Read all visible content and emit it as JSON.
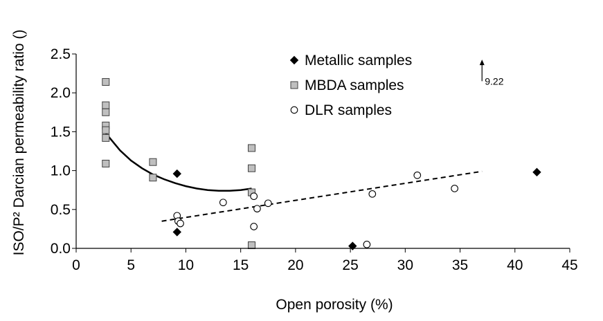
{
  "chart_data": {
    "type": "scatter",
    "title": "",
    "xlabel": "Open porosity (%)",
    "ylabel": "ISO/P² Darcian permeability ratio ()",
    "xlim": [
      0,
      45
    ],
    "ylim": [
      0,
      2.5
    ],
    "x_ticks": [
      "0",
      "5",
      "10",
      "15",
      "20",
      "25",
      "30",
      "35",
      "40",
      "45"
    ],
    "y_ticks": [
      "0.0",
      "0.5",
      "1.0",
      "1.5",
      "2.0",
      "2.5"
    ],
    "grid": false,
    "legend_position": "top-center",
    "series": [
      {
        "name": "Metallic samples",
        "marker": "diamond",
        "fill": "#000000",
        "stroke": "#000000",
        "points": [
          [
            9.2,
            0.96
          ],
          [
            9.2,
            0.21
          ],
          [
            25.2,
            0.03
          ],
          [
            42.0,
            0.98
          ]
        ]
      },
      {
        "name": "MBDA samples",
        "marker": "square",
        "fill": "#bfbfbf",
        "stroke": "#404040",
        "points": [
          [
            2.7,
            2.14
          ],
          [
            2.7,
            1.84
          ],
          [
            2.7,
            1.75
          ],
          [
            2.7,
            1.58
          ],
          [
            2.7,
            1.52
          ],
          [
            2.7,
            1.42
          ],
          [
            2.7,
            1.09
          ],
          [
            7.0,
            1.11
          ],
          [
            7.0,
            0.91
          ],
          [
            16.0,
            1.29
          ],
          [
            16.0,
            1.03
          ],
          [
            16.0,
            0.72
          ],
          [
            16.0,
            0.04
          ]
        ]
      },
      {
        "name": "DLR samples",
        "marker": "circle",
        "fill": "#ffffff",
        "stroke": "#000000",
        "points": [
          [
            9.2,
            0.42
          ],
          [
            9.3,
            0.35
          ],
          [
            9.5,
            0.32
          ],
          [
            13.4,
            0.59
          ],
          [
            16.2,
            0.67
          ],
          [
            16.2,
            0.28
          ],
          [
            16.5,
            0.51
          ],
          [
            17.5,
            0.58
          ],
          [
            26.5,
            0.05
          ],
          [
            27.0,
            0.7
          ],
          [
            31.1,
            0.94
          ],
          [
            34.5,
            0.77
          ]
        ]
      }
    ],
    "trendlines": [
      {
        "style": "solid",
        "points": [
          [
            2.7,
            1.48
          ],
          [
            4.0,
            1.26
          ],
          [
            5.0,
            1.13
          ],
          [
            6.0,
            1.03
          ],
          [
            7.0,
            0.95
          ],
          [
            8.0,
            0.89
          ],
          [
            9.0,
            0.84
          ],
          [
            10.0,
            0.8
          ],
          [
            11.0,
            0.77
          ],
          [
            12.0,
            0.75
          ],
          [
            13.0,
            0.74
          ],
          [
            14.0,
            0.74
          ],
          [
            15.0,
            0.75
          ],
          [
            16.0,
            0.77
          ]
        ]
      },
      {
        "style": "dashed",
        "points": [
          [
            7.8,
            0.35
          ],
          [
            37.0,
            0.99
          ]
        ]
      }
    ],
    "annotations": [
      {
        "text": "9.22",
        "arrow": "up",
        "x": 37.0,
        "y_from": 2.15,
        "y_to": 2.41
      }
    ]
  }
}
